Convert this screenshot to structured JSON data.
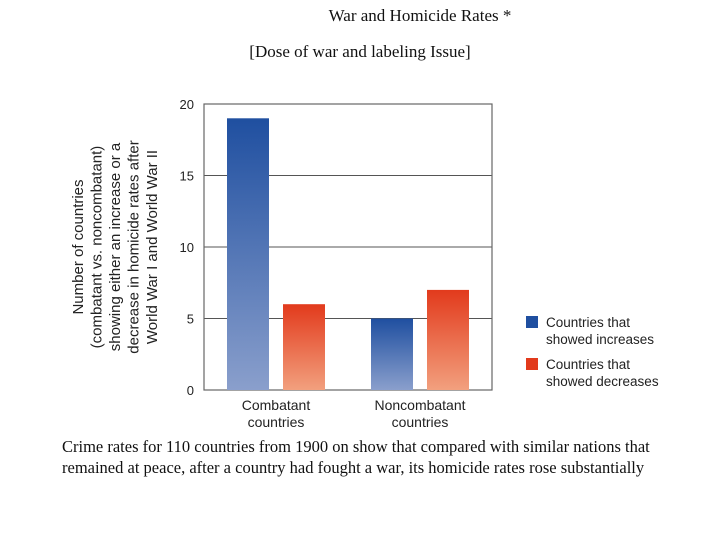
{
  "slide": {
    "title": "War and Homicide Rates *",
    "subtitle": "[Dose of war and labeling Issue]",
    "caption": "Crime rates for 110 countries from 1900 on show that compared with similar nations that remained at peace, after a country had fought a war, its homicide rates rose substantially"
  },
  "chart_data": {
    "type": "bar",
    "categories": [
      [
        "Combatant",
        "countries"
      ],
      [
        "Noncombatant",
        "countries"
      ]
    ],
    "series": [
      {
        "name": [
          "Countries that",
          "showed increases"
        ],
        "values": [
          19,
          5
        ],
        "color": "#1f4fa0",
        "color_light": "#8a9fcc"
      },
      {
        "name": [
          "Countries that",
          "showed decreases"
        ],
        "values": [
          6,
          7
        ],
        "color": "#e23a1c",
        "color_light": "#f2a07e"
      }
    ],
    "ylabel": [
      "Number of countries",
      "(combatant vs. noncombatant)",
      "showing either an increase or a",
      "decrease in homicide rates after",
      "World War I and World War II"
    ],
    "ylim": [
      0,
      20
    ],
    "yticks": [
      0,
      5,
      10,
      15,
      20
    ],
    "grid": true,
    "legend": "right"
  }
}
